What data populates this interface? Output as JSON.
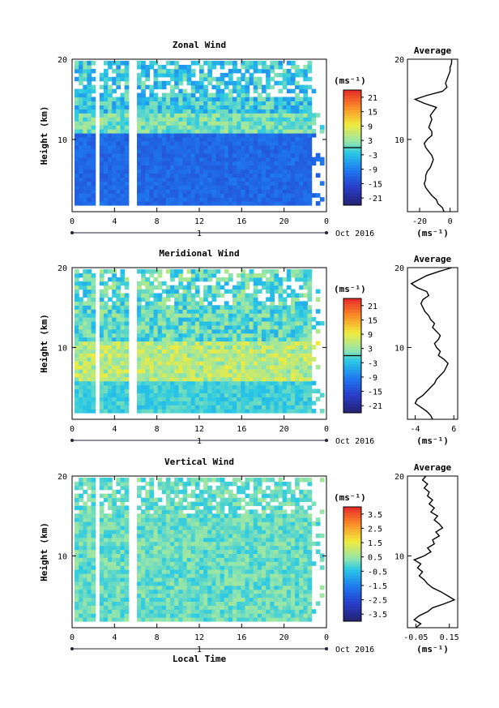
{
  "chart_data": [
    {
      "type": "heatmap",
      "title": "Zonal Wind",
      "ylabel": "Height (km)",
      "x_ticks": [
        "0",
        "4",
        "8",
        "12",
        "16",
        "20",
        "0"
      ],
      "y_ticks": [
        "10",
        "20"
      ],
      "ylim": [
        1,
        20
      ],
      "xlim": [
        0,
        24
      ],
      "date_label": "Oct 2016",
      "day_marker": "1",
      "colorbar": {
        "unit": "(ms⁻¹)",
        "ticks": [
          "21",
          "15",
          "9",
          "3",
          "-3",
          "-9",
          "-15",
          "-21"
        ],
        "range": [
          -24,
          24
        ],
        "zero_line": 3
      },
      "gaps": [
        [
          1.8,
          2.3
        ],
        [
          5.2,
          5.8
        ]
      ],
      "average_profile": {
        "title": "Average",
        "xlabel": "(ms⁻¹)",
        "x_ticks": [
          "-20",
          "0"
        ],
        "xlim": [
          -28,
          5
        ],
        "heights": [
          1,
          1.5,
          2,
          2.5,
          3,
          3.5,
          4,
          4.5,
          5,
          5.5,
          6,
          6.5,
          7,
          7.5,
          8,
          8.5,
          9,
          9.5,
          10,
          10.5,
          11,
          11.5,
          12,
          12.5,
          13,
          13.5,
          14,
          14.5,
          15,
          15.5,
          16,
          16.5,
          17,
          17.5,
          18,
          18.5,
          19,
          19.5,
          20
        ],
        "values": [
          -4,
          -5,
          -8,
          -9,
          -12,
          -14,
          -16,
          -17,
          -16,
          -16,
          -15,
          -13,
          -12,
          -11,
          -12,
          -14,
          -16,
          -17,
          -15,
          -12,
          -12,
          -14,
          -13,
          -12,
          -13,
          -11,
          -9,
          -17,
          -23,
          -15,
          -5,
          -2,
          -3,
          -2,
          -1,
          0,
          0,
          1,
          1
        ]
      }
    },
    {
      "type": "heatmap",
      "title": "Meridional Wind",
      "ylabel": "Height (km)",
      "x_ticks": [
        "0",
        "4",
        "8",
        "12",
        "16",
        "20",
        "0"
      ],
      "y_ticks": [
        "10",
        "20"
      ],
      "ylim": [
        1,
        20
      ],
      "xlim": [
        0,
        24
      ],
      "date_label": "Oct 2016",
      "day_marker": "1",
      "colorbar": {
        "unit": "(ms⁻¹)",
        "ticks": [
          "21",
          "15",
          "9",
          "3",
          "-3",
          "-9",
          "-15",
          "-21"
        ],
        "range": [
          -24,
          24
        ],
        "zero_line": 3
      },
      "gaps": [
        [
          1.8,
          2.3
        ],
        [
          5.2,
          5.8
        ]
      ],
      "average_profile": {
        "title": "Average",
        "xlabel": "(ms⁻¹)",
        "x_ticks": [
          "-4",
          "6"
        ],
        "xlim": [
          -6,
          7
        ],
        "heights": [
          1,
          1.5,
          2,
          2.5,
          3,
          3.5,
          4,
          4.5,
          5,
          5.5,
          6,
          6.5,
          7,
          7.5,
          8,
          8.5,
          9,
          9.5,
          10,
          10.5,
          11,
          11.5,
          12,
          12.5,
          13,
          13.5,
          14,
          14.5,
          15,
          15.5,
          16,
          16.5,
          17,
          17.5,
          18,
          18.5,
          19,
          19.5,
          20
        ],
        "values": [
          0.5,
          0,
          -1,
          -2.5,
          -4,
          -3.5,
          -2,
          -1,
          0,
          1,
          1.5,
          2.5,
          3.5,
          4,
          4.5,
          3.5,
          2,
          2.5,
          1.5,
          1,
          2,
          2.5,
          1.5,
          0.5,
          1,
          0,
          -0.5,
          -1.5,
          -2,
          -2.5,
          -2,
          -0.5,
          -1,
          -3.5,
          -5,
          -3,
          -1,
          2,
          5.5
        ]
      }
    },
    {
      "type": "heatmap",
      "title": "Vertical Wind",
      "ylabel": "Height (km)",
      "xlabel": "Local Time",
      "x_ticks": [
        "0",
        "4",
        "8",
        "12",
        "16",
        "20",
        "0"
      ],
      "y_ticks": [
        "10",
        "20"
      ],
      "ylim": [
        1,
        20
      ],
      "xlim": [
        0,
        24
      ],
      "date_label": "Oct 2016",
      "day_marker": "1",
      "colorbar": {
        "unit": "(ms⁻¹)",
        "ticks": [
          "3.5",
          "2.5",
          "1.5",
          "0.5",
          "-0.5",
          "-1.5",
          "-2.5",
          "-3.5"
        ],
        "range": [
          -4,
          4
        ]
      },
      "gaps": [
        [
          1.8,
          2.3
        ],
        [
          5.2,
          5.8
        ]
      ],
      "average_profile": {
        "title": "Average",
        "xlabel": "(ms⁻¹)",
        "x_ticks": [
          "-0.05",
          "0.15"
        ],
        "xlim": [
          -0.1,
          0.2
        ],
        "heights": [
          1,
          1.5,
          2,
          2.5,
          3,
          3.5,
          4,
          4.5,
          5,
          5.5,
          6,
          6.5,
          7,
          7.5,
          8,
          8.5,
          9,
          9.5,
          10,
          10.5,
          11,
          11.5,
          12,
          12.5,
          13,
          13.5,
          14,
          14.5,
          15,
          15.5,
          16,
          16.5,
          17,
          17.5,
          18,
          18.5,
          19,
          19.5,
          20
        ],
        "values": [
          -0.05,
          -0.02,
          -0.06,
          -0.03,
          0.02,
          0.05,
          0.12,
          0.18,
          0.14,
          0.1,
          0.05,
          0.02,
          0.0,
          -0.03,
          -0.01,
          -0.04,
          -0.02,
          -0.06,
          0.0,
          0.04,
          0.02,
          0.06,
          0.05,
          0.09,
          0.07,
          0.11,
          0.09,
          0.06,
          0.08,
          0.04,
          0.06,
          0.03,
          0.05,
          0.02,
          0.03,
          0.0,
          0.02,
          -0.01,
          0.01
        ]
      }
    }
  ]
}
